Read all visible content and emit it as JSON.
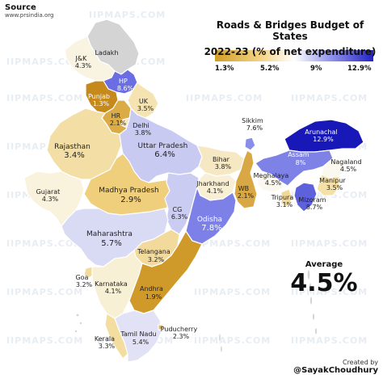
{
  "source": {
    "heading": "Source",
    "site": "www.prsindia.org"
  },
  "title": {
    "line1": "Roads & Bridges Budget of States",
    "line2": "2022-23 (% of net expenditure)"
  },
  "legend": {
    "ticks": [
      "1.3%",
      "5.2%",
      "9%",
      "12.9%"
    ],
    "colors": [
      "#d29f25",
      "#f4d58a",
      "#ffffff",
      "#9fa1ee",
      "#2323c4"
    ]
  },
  "average": {
    "label": "Average",
    "value": "4.5%"
  },
  "credit": {
    "heading": "Created by",
    "handle": "@SayakChoudhury"
  },
  "watermark": "IIPMAPS.COM",
  "colors": {
    "no_data": "#d4d4d4",
    "border": "#ffffff"
  },
  "states": {
    "ladakh": {
      "name": "Ladakh",
      "value": "",
      "color": "#d4d4d4"
    },
    "jk": {
      "name": "J&K",
      "value": "4.3%",
      "color": "#f9f3e2"
    },
    "hp": {
      "name": "HP",
      "value": "8.6%",
      "color": "#6b6ee2"
    },
    "punjab": {
      "name": "Punjab",
      "value": "1.3%",
      "color": "#c68a1c"
    },
    "uk": {
      "name": "UK",
      "value": "3.5%",
      "color": "#f5e4b2"
    },
    "hr": {
      "name": "HR",
      "value": "2.1%",
      "color": "#dbab45"
    },
    "delhi": {
      "name": "Delhi",
      "value": "3.8%",
      "color": "#f6e6c1"
    },
    "rajasthan": {
      "name": "Rajasthan",
      "value": "3.4%",
      "color": "#f3dfa5"
    },
    "up": {
      "name": "Uttar Pradesh",
      "value": "6.4%",
      "color": "#c9caf2"
    },
    "bihar": {
      "name": "Bihar",
      "value": "3.8%",
      "color": "#f6e8c3"
    },
    "sikkim": {
      "name": "Sikkim",
      "value": "7.6%",
      "color": "#8b8ee8"
    },
    "arunachal": {
      "name": "Arunachal",
      "value": "12.9%",
      "color": "#1818b8"
    },
    "assam": {
      "name": "Assam",
      "value": "8%",
      "color": "#7e81e6"
    },
    "nagaland": {
      "name": "Nagaland",
      "value": "4.5%",
      "color": "#fbf8ef"
    },
    "meghalaya": {
      "name": "Meghalaya",
      "value": "4.5%",
      "color": "#fbf8ef"
    },
    "manipur": {
      "name": "Manipur",
      "value": "3.5%",
      "color": "#f4e1a8"
    },
    "tripura": {
      "name": "Tripura",
      "value": "3.1%",
      "color": "#f2d895"
    },
    "mizoram": {
      "name": "Mizoram",
      "value": "8.7%",
      "color": "#5d61dc"
    },
    "gujarat": {
      "name": "Gujarat",
      "value": "4.3%",
      "color": "#f9f2dd"
    },
    "mp": {
      "name": "Madhya Pradesh",
      "value": "2.9%",
      "color": "#efce7c"
    },
    "jharkhand": {
      "name": "Jharkhand",
      "value": "4.1%",
      "color": "#f8efd4"
    },
    "wb": {
      "name": "WB",
      "value": "2.1%",
      "color": "#d9a845"
    },
    "cg": {
      "name": "CG",
      "value": "6.3%",
      "color": "#cbccf1"
    },
    "odisha": {
      "name": "Odisha",
      "value": "7.8%",
      "color": "#7d80e6"
    },
    "maharashtra": {
      "name": "Maharashtra",
      "value": "5.7%",
      "color": "#d9daf4"
    },
    "telangana": {
      "name": "Telangana",
      "value": "3.2%",
      "color": "#f2da9c"
    },
    "goa": {
      "name": "Goa",
      "value": "3.2%",
      "color": "#f2da9c"
    },
    "karnataka": {
      "name": "Karnataka",
      "value": "4.1%",
      "color": "#f8f0d5"
    },
    "andhra": {
      "name": "Andhra",
      "value": "1.9%",
      "color": "#cf9a2a"
    },
    "kerala": {
      "name": "Kerala",
      "value": "3.3%",
      "color": "#f3dd9f"
    },
    "tn": {
      "name": "Tamil Nadu",
      "value": "5.4%",
      "color": "#e2e2f6"
    },
    "puducherry": {
      "name": "Puducherry",
      "value": "2.3%",
      "color": "#e0b656"
    }
  }
}
